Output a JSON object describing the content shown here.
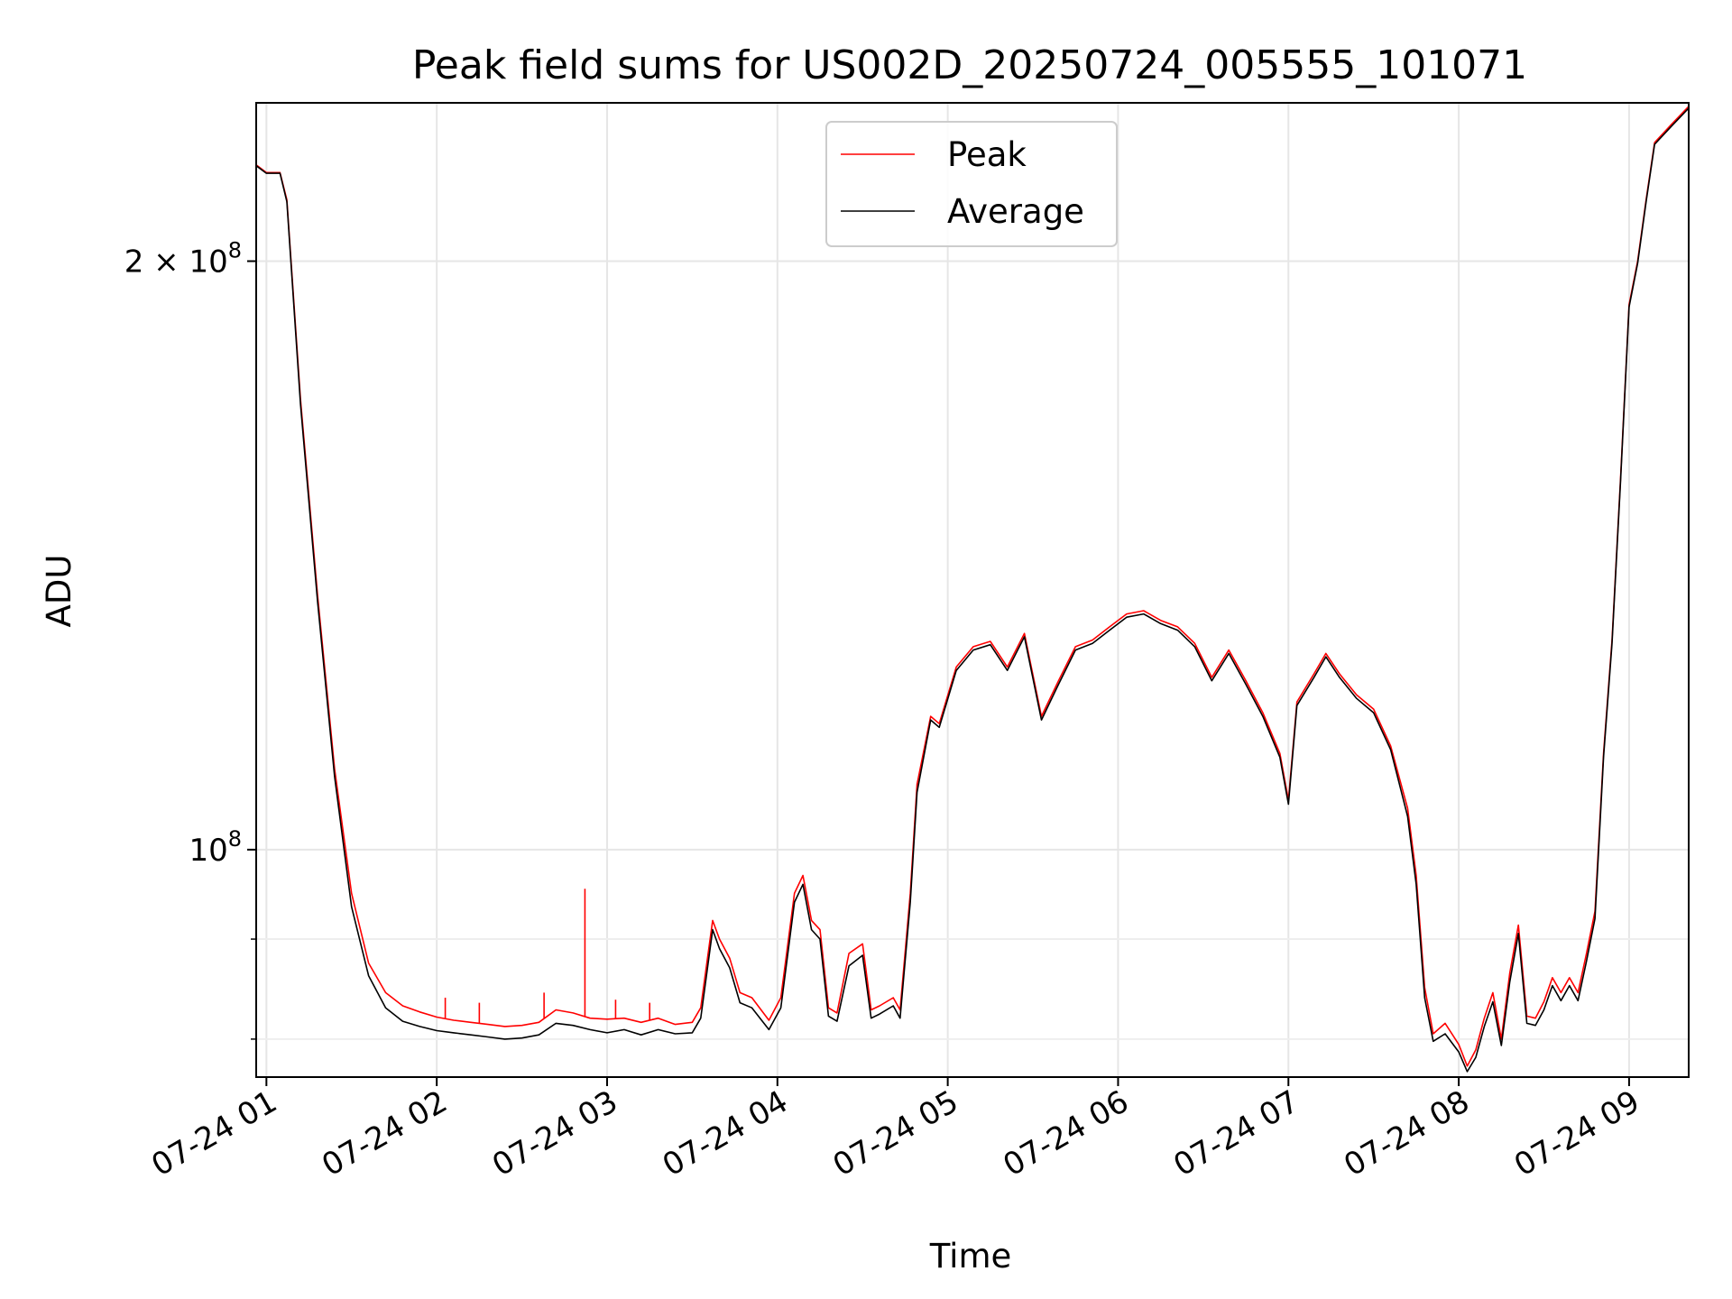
{
  "chart_data": {
    "type": "line",
    "title": "Peak field sums for US002D_20250724_005555_101071",
    "xlabel": "Time",
    "ylabel": "ADU",
    "x_ticks": [
      "07-24 01",
      "07-24 02",
      "07-24 03",
      "07-24 04",
      "07-24 05",
      "07-24 06",
      "07-24 07",
      "07-24 08",
      "07-24 09"
    ],
    "y_ticks": [
      {
        "value": 100000000,
        "base": "10",
        "exp": "8",
        "prefix": ""
      },
      {
        "value": 200000000,
        "base": "10",
        "exp": "8",
        "prefix": "2 × "
      }
    ],
    "y_minor_ticks": [
      80000000,
      90000000
    ],
    "xlim_hours": [
      0.94,
      9.35
    ],
    "ylim": [
      76500000,
      241000000
    ],
    "yscale": "log",
    "grid": true,
    "legend": "upper center",
    "series": [
      {
        "name": "Peak",
        "color": "#ff0000",
        "points": [
          [
            0.94,
            224
          ],
          [
            1.0,
            222
          ],
          [
            1.08,
            222
          ],
          [
            1.12,
            215
          ],
          [
            1.2,
            170
          ],
          [
            1.3,
            135
          ],
          [
            1.4,
            110
          ],
          [
            1.5,
            95
          ],
          [
            1.6,
            87.5
          ],
          [
            1.7,
            84.5
          ],
          [
            1.8,
            83.2
          ],
          [
            1.9,
            82.6
          ],
          [
            2.0,
            82.1
          ],
          [
            2.1,
            81.8
          ],
          [
            2.2,
            81.6
          ],
          [
            2.3,
            81.4
          ],
          [
            2.4,
            81.2
          ],
          [
            2.5,
            81.3
          ],
          [
            2.6,
            81.6
          ],
          [
            2.7,
            82.8
          ],
          [
            2.8,
            82.5
          ],
          [
            2.9,
            82.0
          ],
          [
            3.0,
            81.9
          ],
          [
            3.1,
            82.0
          ],
          [
            3.2,
            81.6
          ],
          [
            3.3,
            82.0
          ],
          [
            3.4,
            81.4
          ],
          [
            3.5,
            81.6
          ],
          [
            3.55,
            83
          ],
          [
            3.62,
            92
          ],
          [
            3.66,
            90
          ],
          [
            3.72,
            88
          ],
          [
            3.78,
            84.5
          ],
          [
            3.85,
            84
          ],
          [
            3.95,
            81.8
          ],
          [
            4.02,
            84
          ],
          [
            4.1,
            95
          ],
          [
            4.15,
            97
          ],
          [
            4.2,
            92
          ],
          [
            4.25,
            91
          ],
          [
            4.3,
            83
          ],
          [
            4.35,
            82.5
          ],
          [
            4.42,
            88.5
          ],
          [
            4.5,
            89.5
          ],
          [
            4.55,
            82.8
          ],
          [
            4.6,
            83.2
          ],
          [
            4.68,
            84
          ],
          [
            4.72,
            82.8
          ],
          [
            4.78,
            95
          ],
          [
            4.82,
            108
          ],
          [
            4.9,
            117
          ],
          [
            4.95,
            116
          ],
          [
            5.05,
            124
          ],
          [
            5.15,
            127
          ],
          [
            5.25,
            127.8
          ],
          [
            5.35,
            124
          ],
          [
            5.45,
            129
          ],
          [
            5.55,
            117
          ],
          [
            5.65,
            122
          ],
          [
            5.75,
            127
          ],
          [
            5.85,
            128
          ],
          [
            5.95,
            130
          ],
          [
            6.05,
            132
          ],
          [
            6.15,
            132.5
          ],
          [
            6.25,
            131
          ],
          [
            6.35,
            130
          ],
          [
            6.45,
            127.5
          ],
          [
            6.55,
            122.5
          ],
          [
            6.65,
            126.5
          ],
          [
            6.75,
            122
          ],
          [
            6.85,
            117.5
          ],
          [
            6.95,
            112
          ],
          [
            7.0,
            106
          ],
          [
            7.05,
            119
          ],
          [
            7.15,
            123
          ],
          [
            7.22,
            126
          ],
          [
            7.3,
            123
          ],
          [
            7.4,
            120
          ],
          [
            7.5,
            118
          ],
          [
            7.6,
            113
          ],
          [
            7.7,
            105
          ],
          [
            7.75,
            97
          ],
          [
            7.8,
            85
          ],
          [
            7.85,
            80.5
          ],
          [
            7.92,
            81.5
          ],
          [
            8.0,
            79.5
          ],
          [
            8.05,
            77.5
          ],
          [
            8.1,
            79
          ],
          [
            8.15,
            82
          ],
          [
            8.2,
            84.5
          ],
          [
            8.25,
            80
          ],
          [
            8.3,
            86.5
          ],
          [
            8.35,
            91.5
          ],
          [
            8.4,
            82.2
          ],
          [
            8.45,
            82
          ],
          [
            8.5,
            83.6
          ],
          [
            8.55,
            86
          ],
          [
            8.6,
            84.5
          ],
          [
            8.65,
            86
          ],
          [
            8.7,
            84.5
          ],
          [
            8.75,
            88.5
          ],
          [
            8.8,
            93
          ],
          [
            8.85,
            112
          ],
          [
            8.9,
            128
          ],
          [
            8.95,
            155
          ],
          [
            9.0,
            190
          ],
          [
            9.05,
            200
          ],
          [
            9.1,
            215
          ],
          [
            9.15,
            230
          ],
          [
            9.25,
            235
          ],
          [
            9.35,
            240
          ]
        ],
        "spikes": [
          [
            2.87,
            95.5
          ],
          [
            2.05,
            84
          ],
          [
            2.25,
            83.5
          ],
          [
            2.63,
            84.5
          ],
          [
            3.25,
            83.5
          ],
          [
            3.05,
            83.8
          ]
        ]
      },
      {
        "name": "Average",
        "color": "#000000",
        "points": [
          [
            0.94,
            223.8
          ],
          [
            1.0,
            221.8
          ],
          [
            1.08,
            221.8
          ],
          [
            1.12,
            214.5
          ],
          [
            1.2,
            169
          ],
          [
            1.3,
            134
          ],
          [
            1.4,
            109
          ],
          [
            1.5,
            93.5
          ],
          [
            1.6,
            86.2
          ],
          [
            1.7,
            83.0
          ],
          [
            1.8,
            81.7
          ],
          [
            1.9,
            81.2
          ],
          [
            2.0,
            80.8
          ],
          [
            2.1,
            80.6
          ],
          [
            2.2,
            80.4
          ],
          [
            2.3,
            80.2
          ],
          [
            2.4,
            80.0
          ],
          [
            2.5,
            80.1
          ],
          [
            2.6,
            80.4
          ],
          [
            2.7,
            81.5
          ],
          [
            2.8,
            81.3
          ],
          [
            2.9,
            80.9
          ],
          [
            3.0,
            80.6
          ],
          [
            3.1,
            80.9
          ],
          [
            3.2,
            80.4
          ],
          [
            3.3,
            80.9
          ],
          [
            3.4,
            80.5
          ],
          [
            3.5,
            80.6
          ],
          [
            3.55,
            82
          ],
          [
            3.62,
            91
          ],
          [
            3.66,
            89
          ],
          [
            3.72,
            87
          ],
          [
            3.78,
            83.5
          ],
          [
            3.85,
            83
          ],
          [
            3.95,
            80.9
          ],
          [
            4.02,
            83
          ],
          [
            4.1,
            94
          ],
          [
            4.15,
            96
          ],
          [
            4.2,
            91
          ],
          [
            4.25,
            90
          ],
          [
            4.3,
            82.2
          ],
          [
            4.35,
            81.7
          ],
          [
            4.42,
            87.2
          ],
          [
            4.5,
            88.3
          ],
          [
            4.55,
            82.0
          ],
          [
            4.6,
            82.4
          ],
          [
            4.68,
            83.2
          ],
          [
            4.72,
            82.0
          ],
          [
            4.78,
            94
          ],
          [
            4.82,
            107
          ],
          [
            4.9,
            116.5
          ],
          [
            4.95,
            115.5
          ],
          [
            5.05,
            123.5
          ],
          [
            5.15,
            126.5
          ],
          [
            5.25,
            127.3
          ],
          [
            5.35,
            123.5
          ],
          [
            5.45,
            128.5
          ],
          [
            5.55,
            116.5
          ],
          [
            5.65,
            121.5
          ],
          [
            5.75,
            126.5
          ],
          [
            5.85,
            127.5
          ],
          [
            5.95,
            129.5
          ],
          [
            6.05,
            131.5
          ],
          [
            6.15,
            132
          ],
          [
            6.25,
            130.5
          ],
          [
            6.35,
            129.5
          ],
          [
            6.45,
            127
          ],
          [
            6.55,
            122
          ],
          [
            6.65,
            126
          ],
          [
            6.75,
            121.5
          ],
          [
            6.85,
            117
          ],
          [
            6.95,
            111.5
          ],
          [
            7.0,
            105.5
          ],
          [
            7.05,
            118.5
          ],
          [
            7.15,
            122.5
          ],
          [
            7.22,
            125.5
          ],
          [
            7.3,
            122.5
          ],
          [
            7.4,
            119.5
          ],
          [
            7.5,
            117.5
          ],
          [
            7.6,
            112.5
          ],
          [
            7.7,
            104
          ],
          [
            7.75,
            96
          ],
          [
            7.8,
            84
          ],
          [
            7.85,
            79.8
          ],
          [
            7.92,
            80.5
          ],
          [
            8.0,
            78.8
          ],
          [
            8.05,
            77.0
          ],
          [
            8.1,
            78.3
          ],
          [
            8.15,
            81.2
          ],
          [
            8.2,
            83.6
          ],
          [
            8.25,
            79.4
          ],
          [
            8.3,
            85.6
          ],
          [
            8.35,
            90.6
          ],
          [
            8.4,
            81.5
          ],
          [
            8.45,
            81.3
          ],
          [
            8.5,
            82.8
          ],
          [
            8.55,
            85.2
          ],
          [
            8.6,
            83.7
          ],
          [
            8.65,
            85.2
          ],
          [
            8.7,
            83.7
          ],
          [
            8.75,
            87.7
          ],
          [
            8.8,
            92.2
          ],
          [
            8.85,
            111.5
          ],
          [
            8.9,
            127.5
          ],
          [
            8.95,
            154.5
          ],
          [
            9.0,
            189.5
          ],
          [
            9.05,
            199.5
          ],
          [
            9.1,
            214.5
          ],
          [
            9.15,
            229.5
          ],
          [
            9.25,
            234.5
          ],
          [
            9.35,
            239.5
          ]
        ]
      }
    ]
  }
}
